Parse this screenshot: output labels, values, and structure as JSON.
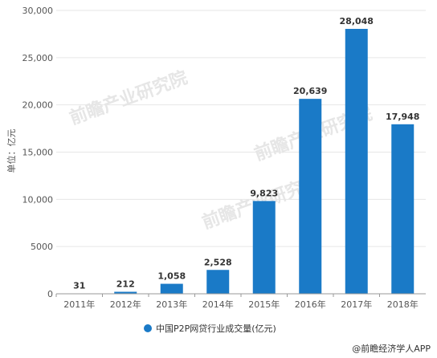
{
  "chart_data": {
    "type": "bar",
    "categories": [
      "2011年",
      "2012年",
      "2013年",
      "2014年",
      "2015年",
      "2016年",
      "2017年",
      "2018年"
    ],
    "series": [
      {
        "name": "中国P2P网贷行业成交量(亿元)",
        "values": [
          31,
          212,
          1058,
          2528,
          9823,
          20639,
          28048,
          17948
        ],
        "color": "#1a7ac7"
      }
    ],
    "data_labels": [
      "31",
      "212",
      "1,058",
      "2,528",
      "9,823",
      "20,639",
      "28,048",
      "17,948"
    ],
    "ylabel": "单位：亿元",
    "ylim": [
      0,
      30000
    ],
    "yticks": [
      0,
      5000,
      10000,
      15000,
      20000,
      25000,
      30000
    ],
    "ytick_labels": [
      "0",
      "5000",
      "10,000",
      "15,000",
      "20,000",
      "25,000",
      "30,000"
    ],
    "grid": true,
    "legend_position": "bottom"
  },
  "watermark": "前瞻产业研究院",
  "credit": "@前瞻经济学人APP"
}
